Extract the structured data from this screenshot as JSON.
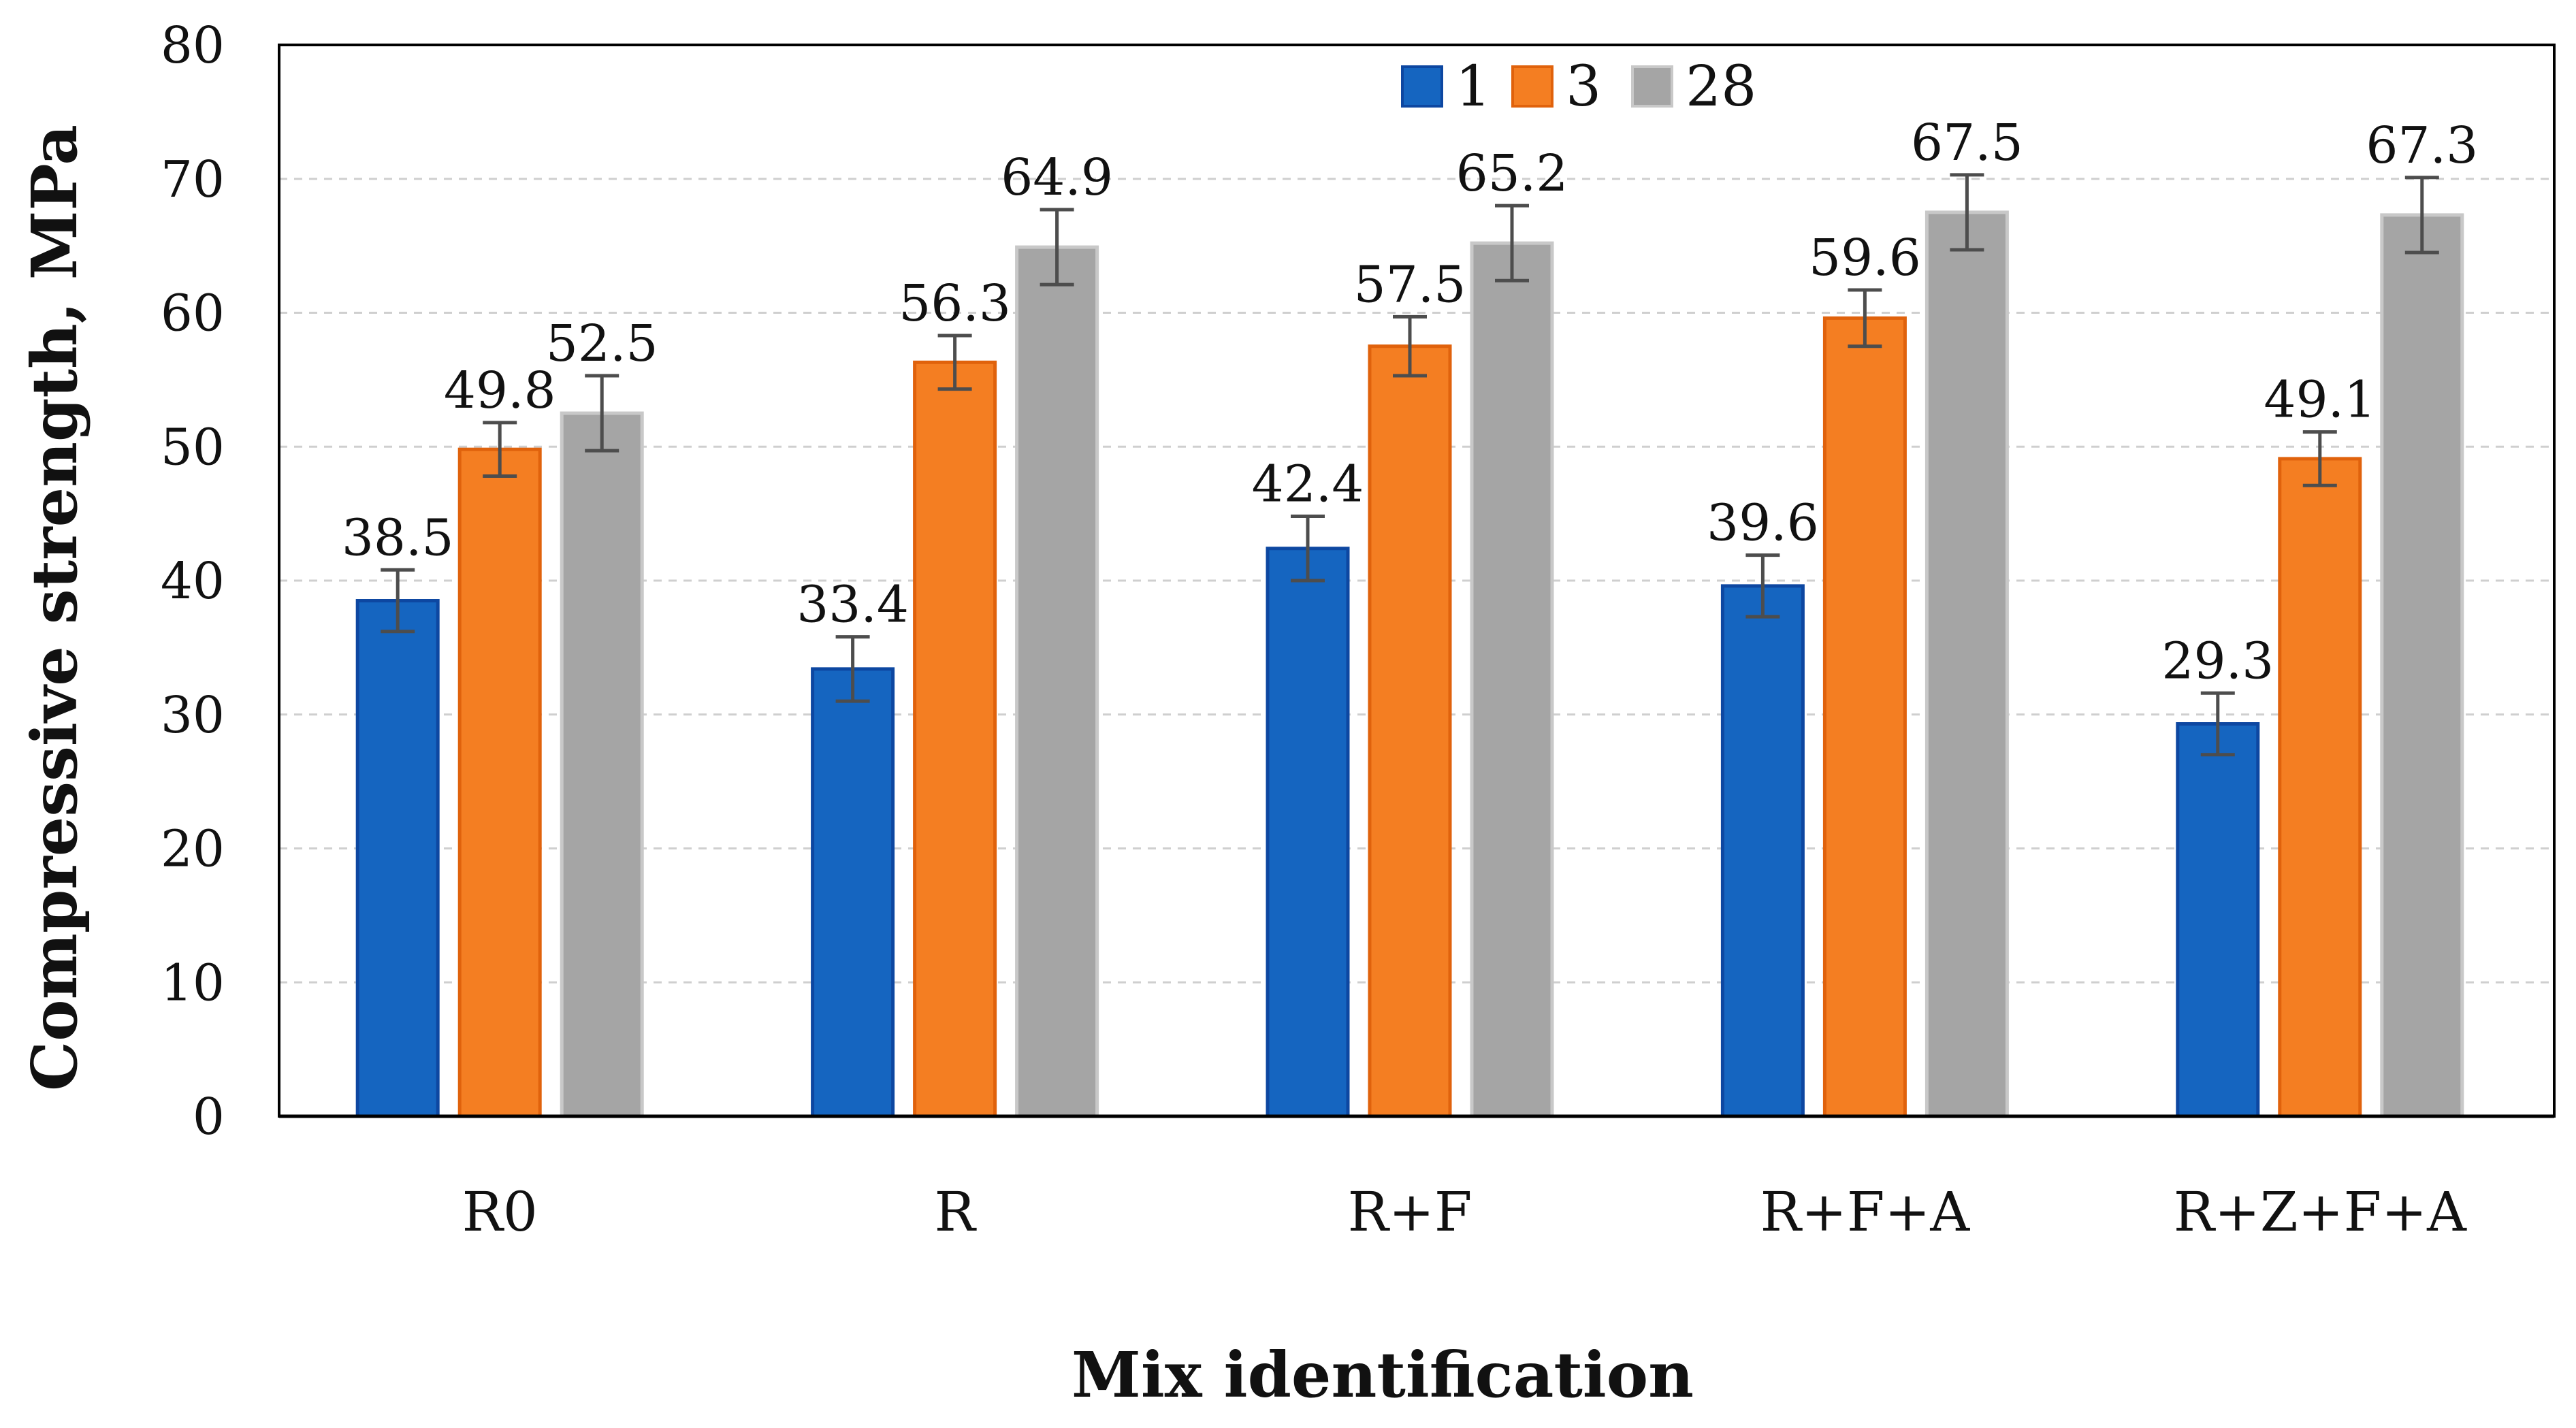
{
  "chart_data": {
    "type": "bar",
    "title": "",
    "xlabel": "Mix identification",
    "ylabel": "Compressive strength, MPa",
    "ylim": [
      0,
      80
    ],
    "yticks": [
      0,
      10,
      20,
      30,
      40,
      50,
      60,
      70,
      80
    ],
    "grid": true,
    "legend_position": "top-center",
    "categories": [
      "R0",
      "R",
      "R+F",
      "R+F+A",
      "R+Z+F+A"
    ],
    "series": [
      {
        "name": "1",
        "color": "#1565c0",
        "edge_color": "#0d47a1",
        "values": [
          38.5,
          33.4,
          42.4,
          39.6,
          29.3
        ],
        "value_labels": [
          "38.5",
          "33.4",
          "42.4",
          "39.6",
          "29.3"
        ],
        "errors": [
          2.3,
          2.4,
          2.4,
          2.3,
          2.3
        ]
      },
      {
        "name": "3",
        "color": "#f47e22",
        "edge_color": "#e0620c",
        "values": [
          49.8,
          56.3,
          57.5,
          59.6,
          49.1
        ],
        "value_labels": [
          "49.8",
          "56.3",
          "57.5",
          "59.6",
          "49.1"
        ],
        "errors": [
          2.0,
          2.0,
          2.2,
          2.1,
          2.0
        ]
      },
      {
        "name": "28",
        "color": "#a5a5a5",
        "edge_color": "#c8c8c8",
        "values": [
          52.5,
          64.9,
          65.2,
          67.5,
          67.3
        ],
        "value_labels": [
          "52.5",
          "64.9",
          "65.2",
          "67.5",
          "67.3"
        ],
        "errors": [
          2.8,
          2.8,
          2.8,
          2.8,
          2.8
        ]
      }
    ]
  }
}
